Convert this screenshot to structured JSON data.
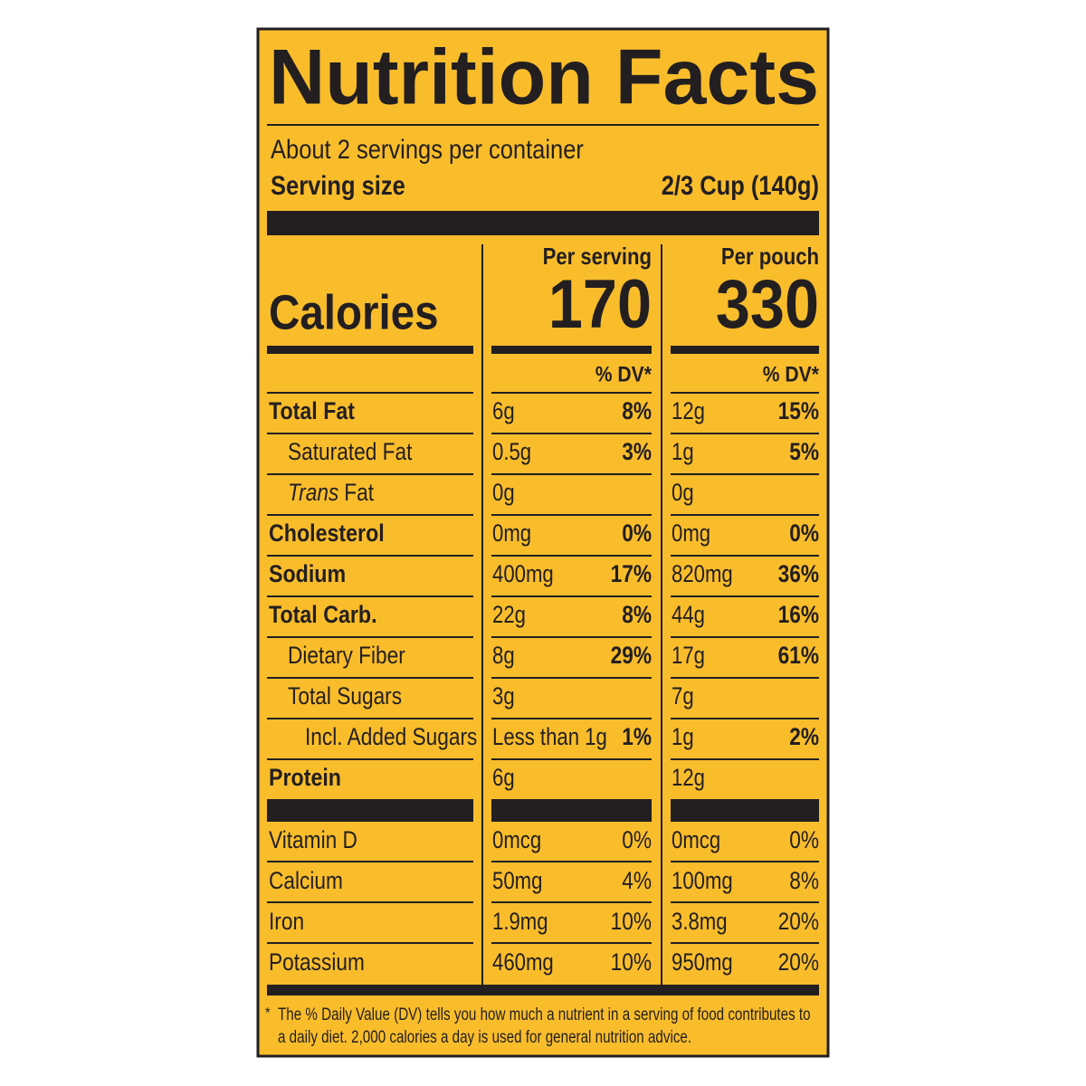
{
  "header": {
    "title": "Nutrition Facts",
    "servings": "About 2 servings per container",
    "serving_size_label": "Serving size",
    "serving_size": "2/3 Cup (140g)"
  },
  "calories": {
    "label": "Calories",
    "columns": [
      {
        "heading": "Per serving",
        "value": "170",
        "dv_heading": "% DV*"
      },
      {
        "heading": "Per pouch",
        "value": "330",
        "dv_heading": "% DV*"
      }
    ]
  },
  "nutrients": [
    {
      "name": "Total Fat",
      "per_serving": {
        "amount": "6g",
        "dv": "8%"
      },
      "per_pouch": {
        "amount": "12g",
        "dv": "15%"
      }
    },
    {
      "name": "Saturated Fat",
      "per_serving": {
        "amount": "0.5g",
        "dv": "3%"
      },
      "per_pouch": {
        "amount": "1g",
        "dv": "5%"
      }
    },
    {
      "name_prefix": "Trans",
      "name": "Fat",
      "per_serving": {
        "amount": "0g"
      },
      "per_pouch": {
        "amount": "0g"
      }
    },
    {
      "name": "Cholesterol",
      "per_serving": {
        "amount": "0mg",
        "dv": "0%"
      },
      "per_pouch": {
        "amount": "0mg",
        "dv": "0%"
      }
    },
    {
      "name": "Sodium",
      "per_serving": {
        "amount": "400mg",
        "dv": "17%"
      },
      "per_pouch": {
        "amount": "820mg",
        "dv": "36%"
      }
    },
    {
      "name": "Total Carb.",
      "per_serving": {
        "amount": "22g",
        "dv": "8%"
      },
      "per_pouch": {
        "amount": "44g",
        "dv": "16%"
      }
    },
    {
      "name": "Dietary Fiber",
      "per_serving": {
        "amount": "8g",
        "dv": "29%"
      },
      "per_pouch": {
        "amount": "17g",
        "dv": "61%"
      }
    },
    {
      "name": "Total Sugars",
      "per_serving": {
        "amount": "3g"
      },
      "per_pouch": {
        "amount": "7g"
      }
    },
    {
      "name": "Incl. Added Sugars",
      "per_serving": {
        "amount": "Less than 1g",
        "dv": "1%"
      },
      "per_pouch": {
        "amount": "1g",
        "dv": "2%"
      }
    },
    {
      "name": "Protein",
      "per_serving": {
        "amount": "6g"
      },
      "per_pouch": {
        "amount": "12g"
      }
    }
  ],
  "vitamins": [
    {
      "name": "Vitamin D",
      "per_serving": {
        "amount": "0mcg",
        "dv": "0%"
      },
      "per_pouch": {
        "amount": "0mcg",
        "dv": "0%"
      }
    },
    {
      "name": "Calcium",
      "per_serving": {
        "amount": "50mg",
        "dv": "4%"
      },
      "per_pouch": {
        "amount": "100mg",
        "dv": "8%"
      }
    },
    {
      "name": "Iron",
      "per_serving": {
        "amount": "1.9mg",
        "dv": "10%"
      },
      "per_pouch": {
        "amount": "3.8mg",
        "dv": "20%"
      }
    },
    {
      "name": "Potassium",
      "per_serving": {
        "amount": "460mg",
        "dv": "10%"
      },
      "per_pouch": {
        "amount": "950mg",
        "dv": "20%"
      }
    }
  ],
  "footnote": {
    "marker": "*",
    "lines": [
      "The % Daily Value (DV) tells you how much a nutrient in a serving of food contributes to",
      "a daily diet. 2,000 calories a day is used for general nutrition advice."
    ]
  }
}
